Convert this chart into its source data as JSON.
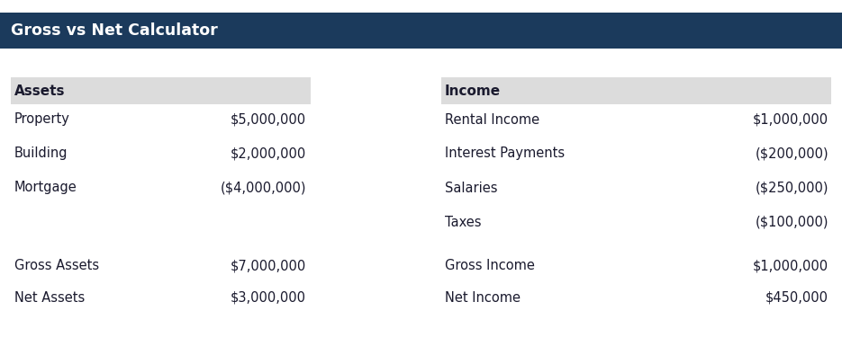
{
  "title": "Gross vs Net Calculator",
  "title_bg": "#1b3a5c",
  "title_color": "#ffffff",
  "title_fontsize": 12.5,
  "bg_color": "#ffffff",
  "header_bg": "#dcdcdc",
  "left_header": "Assets",
  "right_header": "Income",
  "left_rows": [
    [
      "Property",
      "$5,000,000"
    ],
    [
      "Building",
      "$2,000,000"
    ],
    [
      "Mortgage",
      "($4,000,000)"
    ]
  ],
  "left_summary": [
    [
      "Gross Assets",
      "$7,000,000"
    ],
    [
      "Net Assets",
      "$3,000,000"
    ]
  ],
  "right_rows": [
    [
      "Rental Income",
      "$1,000,000"
    ],
    [
      "Interest Payments",
      "($200,000)"
    ],
    [
      "Salaries",
      "($250,000)"
    ],
    [
      "Taxes",
      "($100,000)"
    ]
  ],
  "right_summary": [
    [
      "Gross Income",
      "$1,000,000"
    ],
    [
      "Net Income",
      "$450,000"
    ]
  ],
  "text_color": "#1a1a2e",
  "body_fontsize": 10.5,
  "header_fontsize": 11
}
